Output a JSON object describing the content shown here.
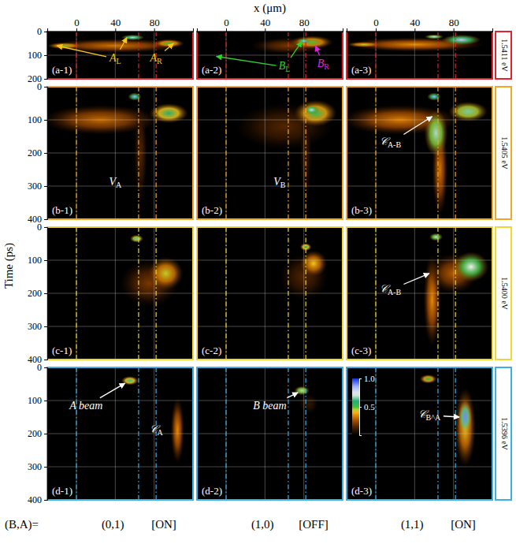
{
  "chart_data": {
    "type": "streak_image_panels",
    "x_label": "x (μm)",
    "y_label": "Time (ps)",
    "xlim": [
      -30,
      120
    ],
    "xticks": [
      0,
      40,
      80
    ],
    "grid": true,
    "guides": [
      0,
      64,
      82
    ],
    "colorbar": {
      "range": [
        0,
        1
      ],
      "ticks": [
        {
          "value": 1,
          "label": "1.0"
        },
        {
          "value": 0.5,
          "label": "0.5"
        }
      ]
    },
    "state_label": "(B,A)=",
    "columns": [
      {
        "state": "(0,1)",
        "status": "[ON]"
      },
      {
        "state": "(1,0)",
        "status": "[OFF]"
      },
      {
        "state": "(1,1)",
        "status": "[ON]"
      }
    ],
    "rows": [
      {
        "energy": "1.5411 eV",
        "color": "#e8202a",
        "ylim": [
          0,
          200
        ],
        "yticks": [
          0,
          100,
          200
        ],
        "panels": [
          {
            "label": "(a-1)",
            "spots": [
              {
                "x": 40,
                "t": 60,
                "rx": 72,
                "rt": 30,
                "v": 0.32
              },
              {
                "x": -12,
                "t": 60,
                "rx": 18,
                "rt": 14,
                "v": 0.48
              },
              {
                "x": 95,
                "t": 50,
                "rx": 16,
                "rt": 18,
                "v": 0.5
              },
              {
                "x": 58,
                "t": 25,
                "rx": 12,
                "rt": 12,
                "v": 0.8
              }
            ],
            "annotations": [
              {
                "text": "A",
                "sub": "L",
                "x": 40,
                "t": 115,
                "color": "#f5c518",
                "arrows": [
                  [
                    -20,
                    60
                  ],
                  [
                    52,
                    25
                  ]
                ]
              },
              {
                "text": "A",
                "sub": "R",
                "x": 82,
                "t": 115,
                "color": "#f5c518",
                "arrows": [
                  [
                    100,
                    50
                  ]
                ]
              }
            ]
          },
          {
            "label": "(a-2)",
            "spots": [
              {
                "x": 65,
                "t": 60,
                "rx": 40,
                "rt": 35,
                "v": 0.2
              },
              {
                "x": 88,
                "t": 45,
                "rx": 22,
                "rt": 28,
                "v": 0.5
              },
              {
                "x": 80,
                "t": 40,
                "rx": 7,
                "rt": 10,
                "v": 0.85
              }
            ],
            "annotations": [
              {
                "text": "B",
                "sub": "L",
                "x": 60,
                "t": 150,
                "color": "#30d030",
                "arrows": [
                  [
                    -10,
                    105
                  ],
                  [
                    78,
                    42
                  ]
                ]
              },
              {
                "text": "B",
                "sub": "R",
                "x": 100,
                "t": 140,
                "color": "#e020e0",
                "arrows": [
                  [
                    92,
                    60
                  ]
                ]
              }
            ]
          },
          {
            "label": "(a-3)",
            "spots": [
              {
                "x": 40,
                "t": 55,
                "rx": 72,
                "rt": 30,
                "v": 0.35
              },
              {
                "x": -12,
                "t": 55,
                "rx": 18,
                "rt": 12,
                "v": 0.45
              },
              {
                "x": 88,
                "t": 35,
                "rx": 20,
                "rt": 22,
                "v": 0.8
              },
              {
                "x": 60,
                "t": 22,
                "rx": 10,
                "rt": 10,
                "v": 0.7
              }
            ]
          }
        ]
      },
      {
        "energy": "1.5405 eV",
        "color": "#f5a623",
        "ylim": [
          0,
          400
        ],
        "yticks": [
          0,
          100,
          200,
          300,
          400
        ],
        "panels": [
          {
            "label": "(b-1)",
            "spots": [
              {
                "x": 25,
                "t": 100,
                "rx": 60,
                "rt": 45,
                "v": 0.3
              },
              {
                "x": 66,
                "t": 200,
                "rx": 7,
                "rt": 150,
                "v": 0.15
              },
              {
                "x": 95,
                "t": 80,
                "rx": 20,
                "rt": 30,
                "v": 0.6
              },
              {
                "x": 60,
                "t": 30,
                "rx": 7,
                "rt": 12,
                "v": 0.85
              }
            ],
            "annotations": [
              {
                "text": "V",
                "sub": "A",
                "x": 40,
                "t": 290,
                "color": "#ffffff"
              }
            ]
          },
          {
            "label": "(b-2)",
            "spots": [
              {
                "x": 60,
                "t": 120,
                "rx": 50,
                "rt": 70,
                "v": 0.15
              },
              {
                "x": 82,
                "t": 200,
                "rx": 6,
                "rt": 150,
                "v": 0.12
              },
              {
                "x": 92,
                "t": 80,
                "rx": 22,
                "rt": 40,
                "v": 0.55
              },
              {
                "x": 88,
                "t": 70,
                "rx": 8,
                "rt": 14,
                "v": 0.78
              }
            ],
            "annotations": [
              {
                "text": "V",
                "sub": "B",
                "x": 55,
                "t": 290,
                "color": "#ffffff"
              }
            ]
          },
          {
            "label": "(b-3)",
            "spots": [
              {
                "x": 25,
                "t": 100,
                "rx": 60,
                "rt": 45,
                "v": 0.33
              },
              {
                "x": 66,
                "t": 250,
                "rx": 8,
                "rt": 140,
                "v": 0.32
              },
              {
                "x": 62,
                "t": 140,
                "rx": 12,
                "rt": 70,
                "v": 0.68
              },
              {
                "x": 95,
                "t": 75,
                "rx": 20,
                "rt": 30,
                "v": 0.65
              },
              {
                "x": 60,
                "t": 30,
                "rx": 7,
                "rt": 12,
                "v": 0.85
              }
            ],
            "annotations": [
              {
                "text": "𝒞",
                "sub": "A-B",
                "x": 15,
                "t": 170,
                "color": "#ffffff",
                "arrows": [
                  [
                    58,
                    90
                  ]
                ]
              }
            ]
          }
        ]
      },
      {
        "energy": "1.5400 eV",
        "color": "#f0d830",
        "ylim": [
          0,
          400
        ],
        "yticks": [
          0,
          100,
          200,
          300,
          400
        ],
        "panels": [
          {
            "label": "(c-1)",
            "spots": [
              {
                "x": 75,
                "t": 170,
                "rx": 30,
                "rt": 70,
                "v": 0.2
              },
              {
                "x": 92,
                "t": 140,
                "rx": 18,
                "rt": 50,
                "v": 0.45
              },
              {
                "x": 62,
                "t": 35,
                "rx": 7,
                "rt": 12,
                "v": 0.65
              }
            ]
          },
          {
            "label": "(c-2)",
            "spots": [
              {
                "x": 80,
                "t": 150,
                "rx": 25,
                "rt": 70,
                "v": 0.15
              },
              {
                "x": 90,
                "t": 110,
                "rx": 14,
                "rt": 40,
                "v": 0.42
              },
              {
                "x": 82,
                "t": 60,
                "rx": 6,
                "rt": 12,
                "v": 0.6
              }
            ]
          },
          {
            "label": "(c-3)",
            "spots": [
              {
                "x": 58,
                "t": 220,
                "rx": 9,
                "rt": 140,
                "v": 0.35
              },
              {
                "x": 80,
                "t": 140,
                "rx": 25,
                "rt": 60,
                "v": 0.28
              },
              {
                "x": 98,
                "t": 120,
                "rx": 18,
                "rt": 45,
                "v": 0.72
              },
              {
                "x": 62,
                "t": 30,
                "rx": 7,
                "rt": 12,
                "v": 0.7
              }
            ],
            "annotations": [
              {
                "text": "𝒞",
                "sub": "A-B",
                "x": 15,
                "t": 190,
                "color": "#ffffff",
                "arrows": [
                  [
                    55,
                    140
                  ]
                ]
              }
            ]
          }
        ]
      },
      {
        "energy": "1.5396 eV",
        "color": "#3ab0e8",
        "ylim": [
          0,
          400
        ],
        "yticks": [
          0,
          100,
          200,
          300,
          400
        ],
        "panels": [
          {
            "label": "(d-1)",
            "spots": [
              {
                "x": 55,
                "t": 40,
                "rx": 9,
                "rt": 14,
                "v": 0.62
              },
              {
                "x": 104,
                "t": 190,
                "rx": 7,
                "rt": 100,
                "v": 0.35
              }
            ],
            "annotations": [
              {
                "text": "A beam",
                "x": 10,
                "t": 120,
                "color": "#ffffff",
                "arrows": [
                  [
                    50,
                    48
                  ]
                ]
              },
              {
                "text": "𝒞",
                "sub": "A",
                "x": 82,
                "t": 190,
                "color": "#ffffff"
              }
            ]
          },
          {
            "label": "(d-2)",
            "spots": [
              {
                "x": 85,
                "t": 110,
                "rx": 10,
                "rt": 30,
                "v": 0.1
              },
              {
                "x": 78,
                "t": 70,
                "rx": 8,
                "rt": 14,
                "v": 0.68
              }
            ],
            "annotations": [
              {
                "text": "B beam",
                "x": 45,
                "t": 120,
                "color": "#ffffff",
                "arrows": [
                  [
                    74,
                    76
                  ]
                ]
              }
            ]
          },
          {
            "label": "(d-3)",
            "spots": [
              {
                "x": 54,
                "t": 35,
                "rx": 9,
                "rt": 14,
                "v": 0.55
              },
              {
                "x": 92,
                "t": 180,
                "rx": 11,
                "rt": 120,
                "v": 0.42
              },
              {
                "x": 92,
                "t": 150,
                "rx": 7,
                "rt": 50,
                "v": 0.9
              }
            ],
            "annotations": [
              {
                "text": "𝒞",
                "sub": "B^A",
                "x": 55,
                "t": 145,
                "color": "#ffffff",
                "arrows": [
                  [
                    86,
                    150
                  ]
                ]
              }
            ]
          }
        ]
      }
    ]
  }
}
